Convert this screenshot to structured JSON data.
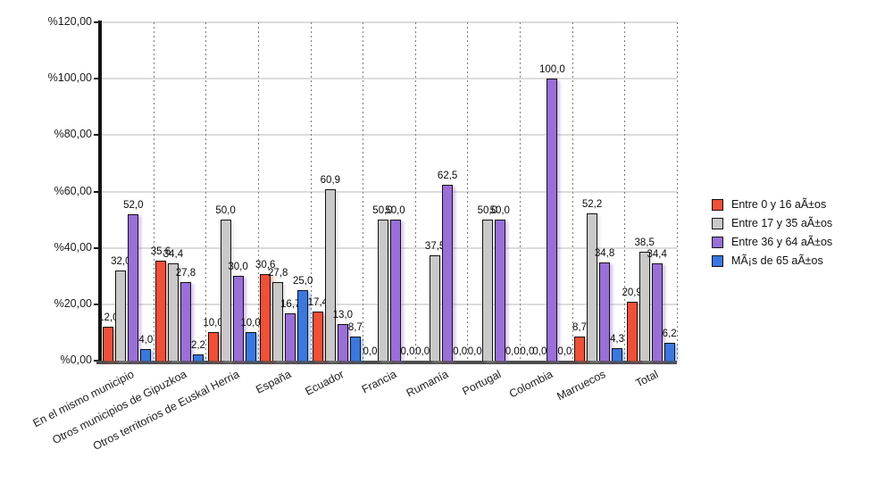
{
  "chart_data": {
    "type": "bar",
    "title": "",
    "xlabel": "",
    "ylabel": "",
    "y_axis": {
      "tick_labels": [
        "%0,00",
        "%20,00",
        "%40,00",
        "%60,00",
        "%80,00",
        "%100,00",
        "%120,00"
      ],
      "tick_values": [
        0,
        20,
        40,
        60,
        80,
        100,
        120
      ],
      "ylim": [
        0,
        120
      ],
      "grid": "horizontal-solid, vertical-dotted-category-separators"
    },
    "categories": [
      "En el mismo municipio",
      "Otros municipios de Gipuzkoa",
      "Otros territorios de Euskal Herria",
      "España",
      "Ecuador",
      "Francia",
      "Rumanía",
      "Portugal",
      "Colombia",
      "Marruecos",
      "Total"
    ],
    "series": [
      {
        "name": "Entre 0 y 16 aÃ±os",
        "color": "#f04f38",
        "values": [
          12.0,
          35.6,
          10.0,
          30.6,
          17.4,
          0.0,
          0.0,
          0.0,
          0.0,
          8.7,
          20.9
        ]
      },
      {
        "name": "Entre 17 y 35 aÃ±os",
        "color": "#c9c9c9",
        "values": [
          32.0,
          34.4,
          50.0,
          27.8,
          60.9,
          50.0,
          37.5,
          50.0,
          0.0,
          52.2,
          38.5
        ]
      },
      {
        "name": "Entre 36 y 64 aÃ±os",
        "color": "#9a6fd8",
        "values": [
          52.0,
          27.8,
          30.0,
          16.7,
          13.0,
          50.0,
          62.5,
          50.0,
          100.0,
          34.8,
          34.4
        ]
      },
      {
        "name": "MÃ¡s de 65 aÃ±os",
        "color": "#3a78de",
        "values": [
          4.0,
          2.2,
          10.0,
          25.0,
          8.7,
          0.0,
          0.0,
          0.0,
          0.0,
          4.3,
          6.2
        ]
      }
    ],
    "data_label_format": "one decimal, comma separator (e.g. 52,0)",
    "legend_position": "right"
  }
}
